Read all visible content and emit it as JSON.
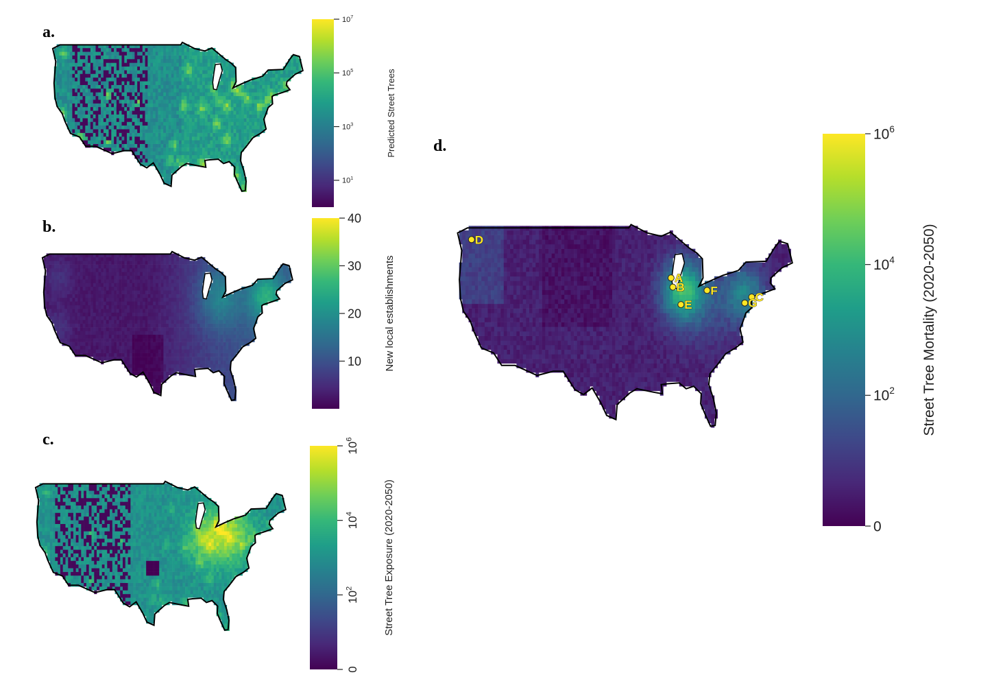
{
  "colors": {
    "viridis": [
      "#440154",
      "#482878",
      "#3e4989",
      "#31688e",
      "#26828e",
      "#1f9e89",
      "#35b779",
      "#6ece58",
      "#b5de2b",
      "#fde725"
    ],
    "outline": "#000000",
    "marker_fill": "#fde725"
  },
  "panels": {
    "a": {
      "label": "a.",
      "legend_title": "Predicted Street Trees",
      "legend_ticks": [
        {
          "base": "10",
          "exp": "7",
          "value": 7
        },
        {
          "base": "10",
          "exp": "5",
          "value": 5
        },
        {
          "base": "10",
          "exp": "3",
          "value": 3
        },
        {
          "base": "10",
          "exp": "1",
          "value": 1
        }
      ],
      "scale": "log10",
      "range": [
        0,
        7
      ]
    },
    "b": {
      "label": "b.",
      "legend_title": "New local establishments",
      "legend_ticks": [
        {
          "base": "40",
          "exp": "",
          "value": 40
        },
        {
          "base": "30",
          "exp": "",
          "value": 30
        },
        {
          "base": "20",
          "exp": "",
          "value": 20
        },
        {
          "base": "10",
          "exp": "",
          "value": 10
        }
      ],
      "scale": "linear",
      "range": [
        0,
        40
      ]
    },
    "c": {
      "label": "c.",
      "legend_title": "Street Tree Exposure (2020-2050)",
      "legend_ticks": [
        {
          "base": "10",
          "exp": "6",
          "value": 6
        },
        {
          "base": "10",
          "exp": "4",
          "value": 4
        },
        {
          "base": "10",
          "exp": "2",
          "value": 2
        },
        {
          "base": "0",
          "exp": "",
          "value": 0
        }
      ],
      "scale": "log10",
      "range": [
        0,
        6
      ]
    },
    "d": {
      "label": "d.",
      "legend_title": "Street Tree Mortality (2020-2050)",
      "legend_ticks": [
        {
          "base": "10",
          "exp": "6",
          "value": 6
        },
        {
          "base": "10",
          "exp": "4",
          "value": 4
        },
        {
          "base": "10",
          "exp": "2",
          "value": 2
        },
        {
          "base": "0",
          "exp": "",
          "value": 0
        }
      ],
      "scale": "log10",
      "range": [
        0,
        6
      ],
      "markers": [
        {
          "label": "A",
          "lon": -87.9,
          "lat": 43.0
        },
        {
          "label": "B",
          "lon": -87.6,
          "lat": 41.9
        },
        {
          "label": "C",
          "lon": -74.0,
          "lat": 40.7
        },
        {
          "label": "D",
          "lon": -122.3,
          "lat": 47.6
        },
        {
          "label": "E",
          "lon": -86.2,
          "lat": 39.8
        },
        {
          "label": "F",
          "lon": -81.7,
          "lat": 41.5
        },
        {
          "label": "G",
          "lon": -75.2,
          "lat": 40.0
        }
      ]
    }
  }
}
